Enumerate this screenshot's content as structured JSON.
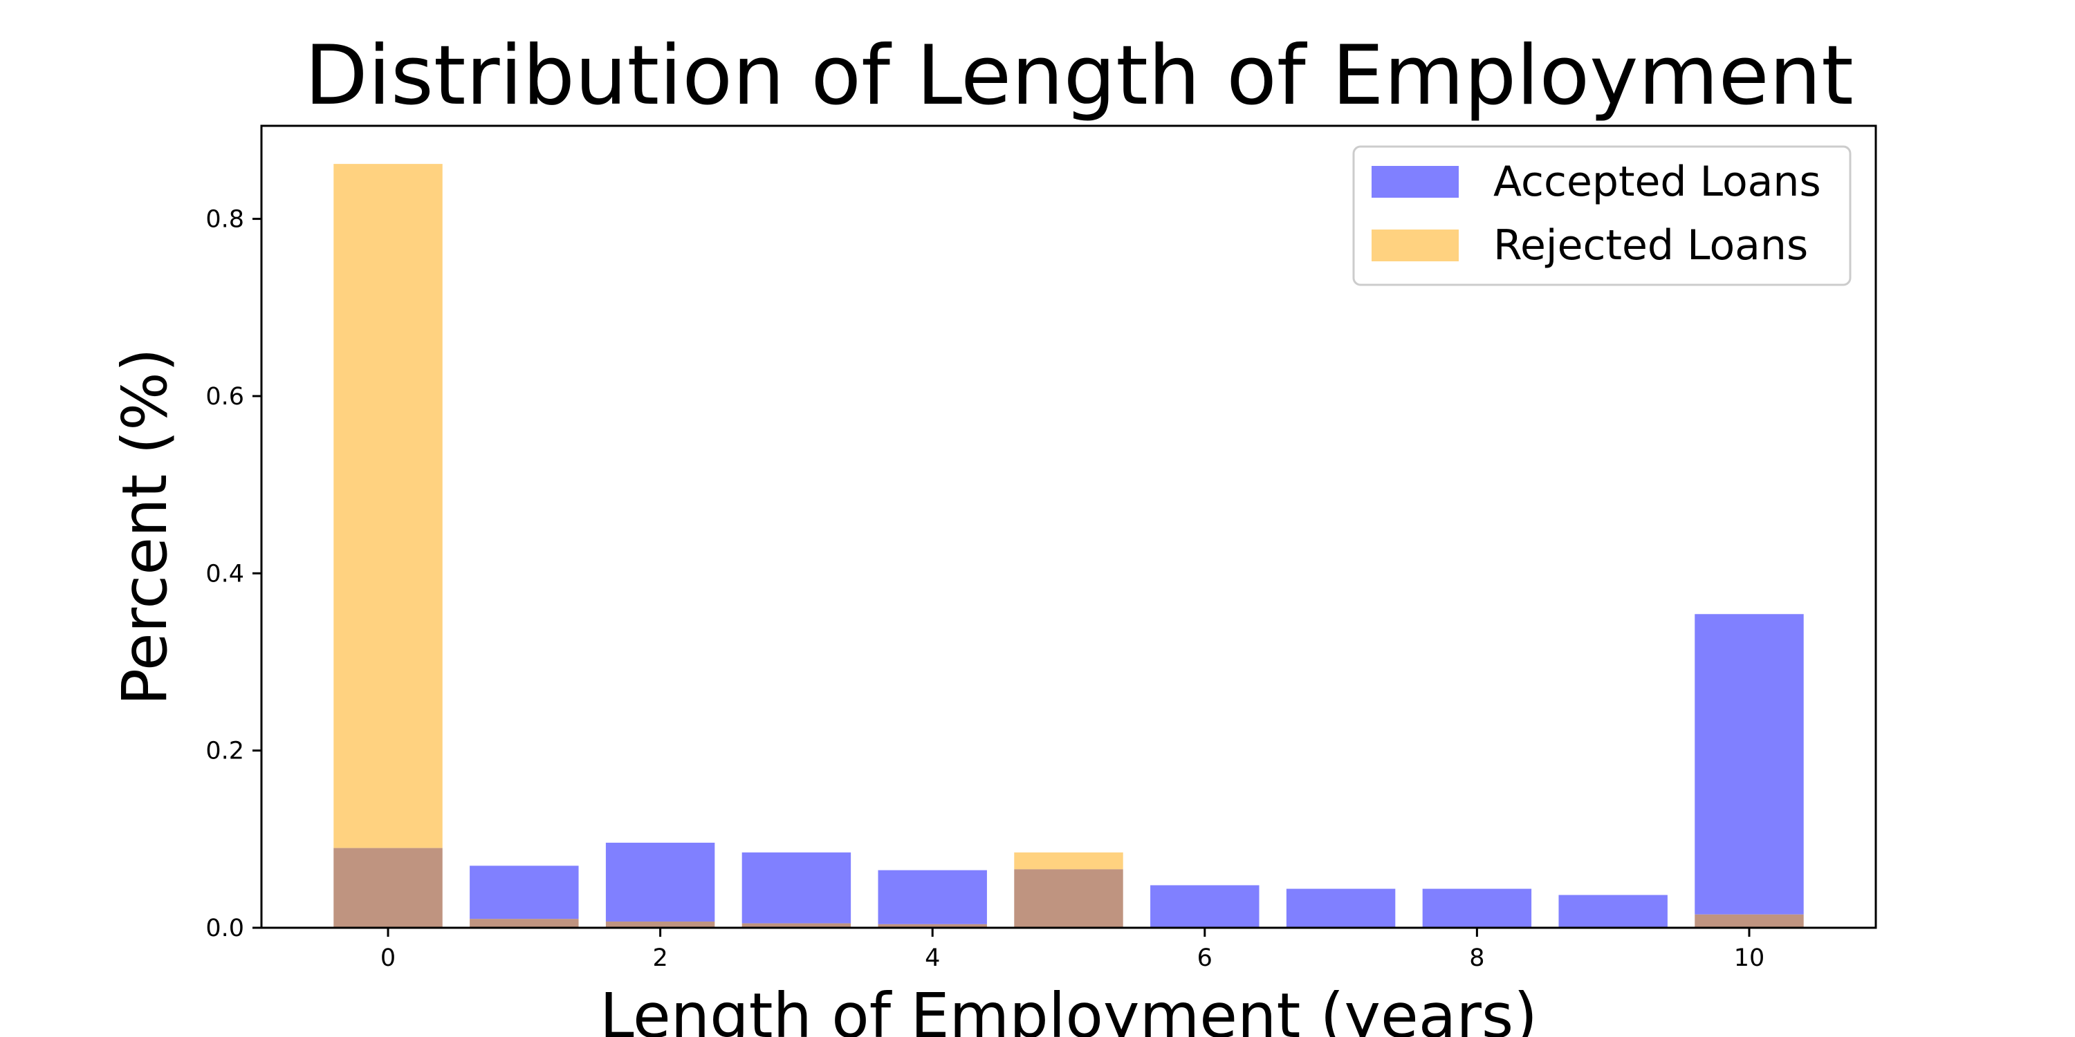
{
  "chart_data": {
    "type": "bar",
    "title": "Distribution of Length of Employment",
    "xlabel": "Length of Employment (years)",
    "ylabel": "Percent (%)",
    "x": [
      0,
      1,
      2,
      3,
      4,
      5,
      6,
      7,
      8,
      9,
      10
    ],
    "series": [
      {
        "name": "Accepted Loans",
        "color": "#8080ff",
        "values": [
          0.09,
          0.07,
          0.096,
          0.085,
          0.065,
          0.066,
          0.048,
          0.044,
          0.044,
          0.037,
          0.354
        ]
      },
      {
        "name": "Rejected Loans",
        "color": "#ffd280",
        "values": [
          0.862,
          0.01,
          0.007,
          0.005,
          0.004,
          0.085,
          0.001,
          0.001,
          0.001,
          0.001,
          0.015
        ]
      }
    ],
    "overlap_color": "#bf9480",
    "xlim": [
      -0.93,
      10.93
    ],
    "ylim": [
      0,
      0.905
    ],
    "xticks": [
      0,
      2,
      4,
      6,
      8,
      10
    ],
    "xtick_labels": [
      "0",
      "2",
      "4",
      "6",
      "8",
      "10"
    ],
    "yticks": [
      0.0,
      0.2,
      0.4,
      0.6,
      0.8
    ],
    "ytick_labels": [
      "0.0",
      "0.2",
      "0.4",
      "0.6",
      "0.8"
    ],
    "bar_width": 0.8,
    "grid": false,
    "legend": "upper right"
  }
}
